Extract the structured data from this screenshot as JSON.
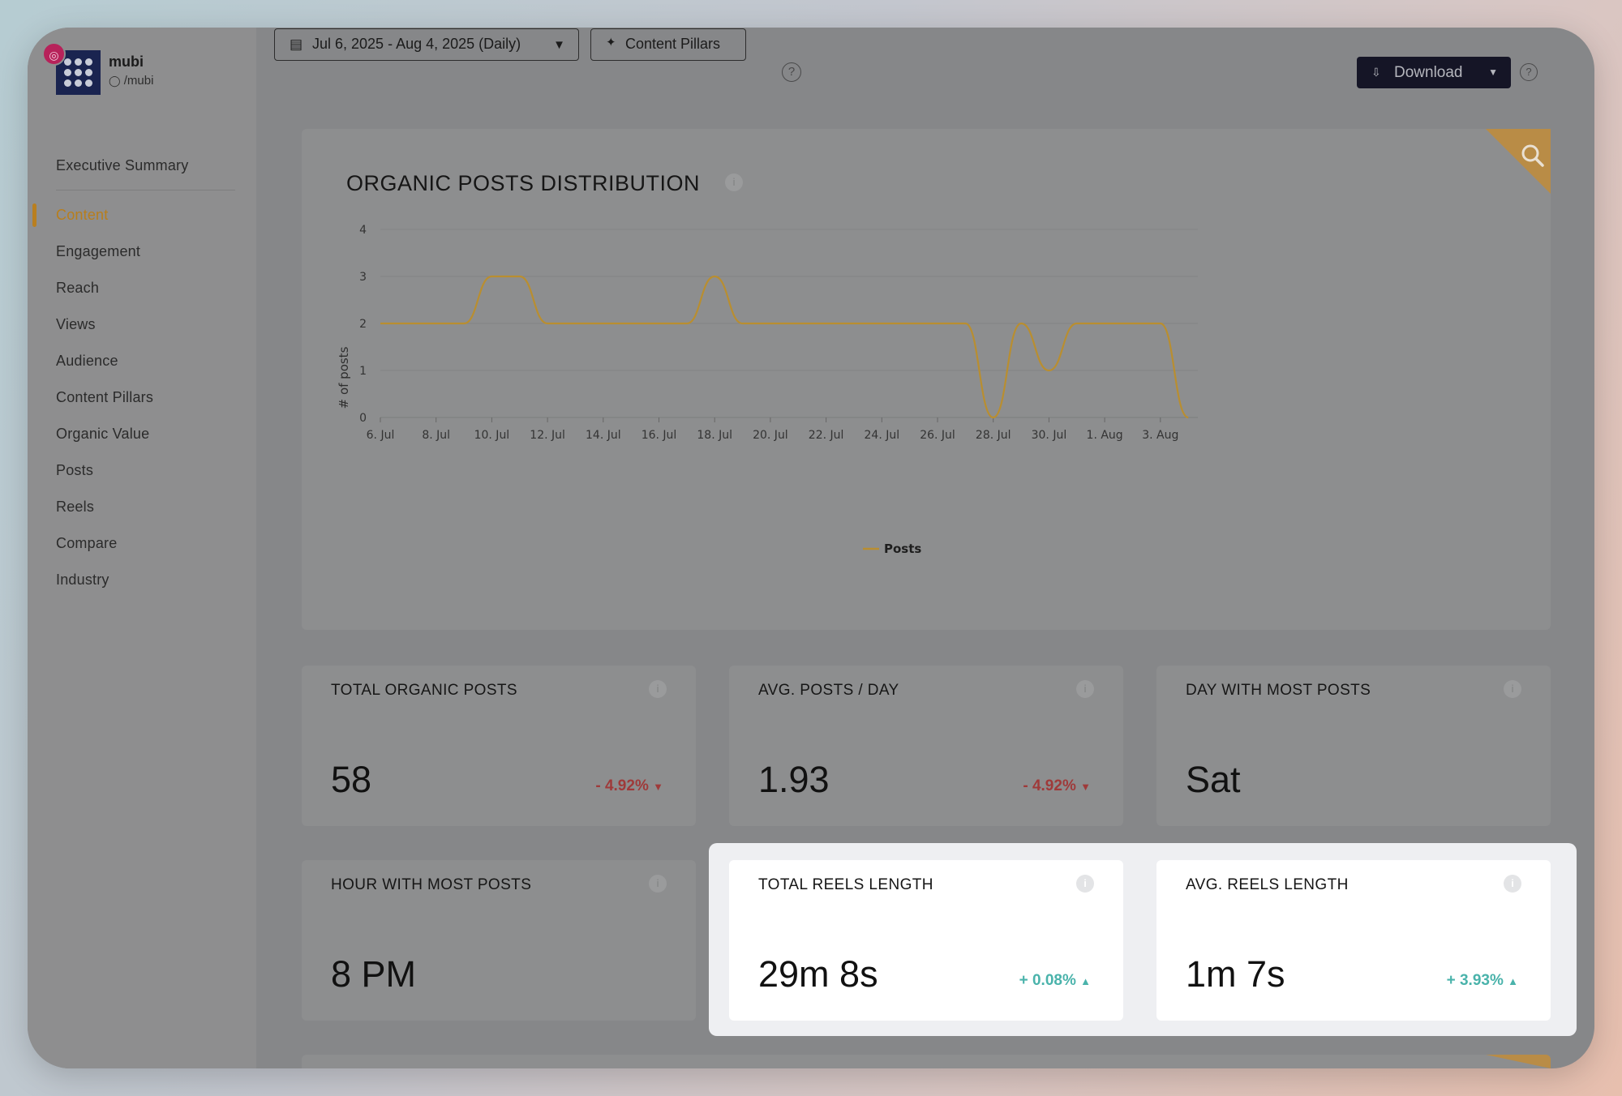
{
  "brand": {
    "name": "mubi",
    "handle": "/mubi"
  },
  "nav": {
    "summary": "Executive Summary",
    "items": [
      "Content",
      "Engagement",
      "Reach",
      "Views",
      "Audience",
      "Content Pillars",
      "Organic Value",
      "Posts",
      "Reels",
      "Compare",
      "Industry"
    ],
    "active": "Content"
  },
  "toolbar": {
    "date_range": "Jul 6, 2025 - Aug 4, 2025 (Daily)",
    "pillars_label": "Content Pillars",
    "download_label": "Download"
  },
  "chart": {
    "title": "ORGANIC POSTS DISTRIBUTION"
  },
  "chart_data": {
    "type": "line",
    "title": "ORGANIC POSTS DISTRIBUTION",
    "ylabel": "# of posts",
    "xlabel": "",
    "ylim": [
      0,
      4
    ],
    "yticks": [
      0,
      1,
      2,
      3,
      4
    ],
    "xticks": [
      "6. Jul",
      "8. Jul",
      "10. Jul",
      "12. Jul",
      "14. Jul",
      "16. Jul",
      "18. Jul",
      "20. Jul",
      "22. Jul",
      "24. Jul",
      "26. Jul",
      "28. Jul",
      "30. Jul",
      "1. Aug",
      "3. Aug"
    ],
    "legend": "bottom-center",
    "series": [
      {
        "name": "Posts",
        "color": "#b98e30",
        "x": [
          "Jul 6",
          "Jul 7",
          "Jul 8",
          "Jul 9",
          "Jul 10",
          "Jul 11",
          "Jul 12",
          "Jul 13",
          "Jul 14",
          "Jul 15",
          "Jul 16",
          "Jul 17",
          "Jul 18",
          "Jul 19",
          "Jul 20",
          "Jul 21",
          "Jul 22",
          "Jul 23",
          "Jul 24",
          "Jul 25",
          "Jul 26",
          "Jul 27",
          "Jul 28",
          "Jul 29",
          "Jul 30",
          "Jul 31",
          "Aug 1",
          "Aug 2",
          "Aug 3",
          "Aug 4"
        ],
        "values": [
          2,
          2,
          2,
          2,
          3,
          3,
          2,
          2,
          2,
          2,
          2,
          2,
          3,
          2,
          2,
          2,
          2,
          2,
          2,
          2,
          2,
          2,
          0,
          2,
          1,
          2,
          2,
          2,
          2,
          0
        ]
      }
    ]
  },
  "metrics": [
    {
      "title": "TOTAL ORGANIC POSTS",
      "value": "58",
      "delta": "- 4.92%",
      "trend": "down"
    },
    {
      "title": "AVG. POSTS / DAY",
      "value": "1.93",
      "delta": "- 4.92%",
      "trend": "down"
    },
    {
      "title": "DAY WITH MOST POSTS",
      "value": "Sat",
      "delta": "",
      "trend": ""
    },
    {
      "title": "HOUR WITH MOST POSTS",
      "value": "8 PM",
      "delta": "",
      "trend": ""
    },
    {
      "title": "TOTAL REELS LENGTH",
      "value": "29m 8s",
      "delta": "+ 0.08%",
      "trend": "up"
    },
    {
      "title": "AVG. REELS LENGTH",
      "value": "1m 7s",
      "delta": "+ 3.93%",
      "trend": "up"
    }
  ]
}
